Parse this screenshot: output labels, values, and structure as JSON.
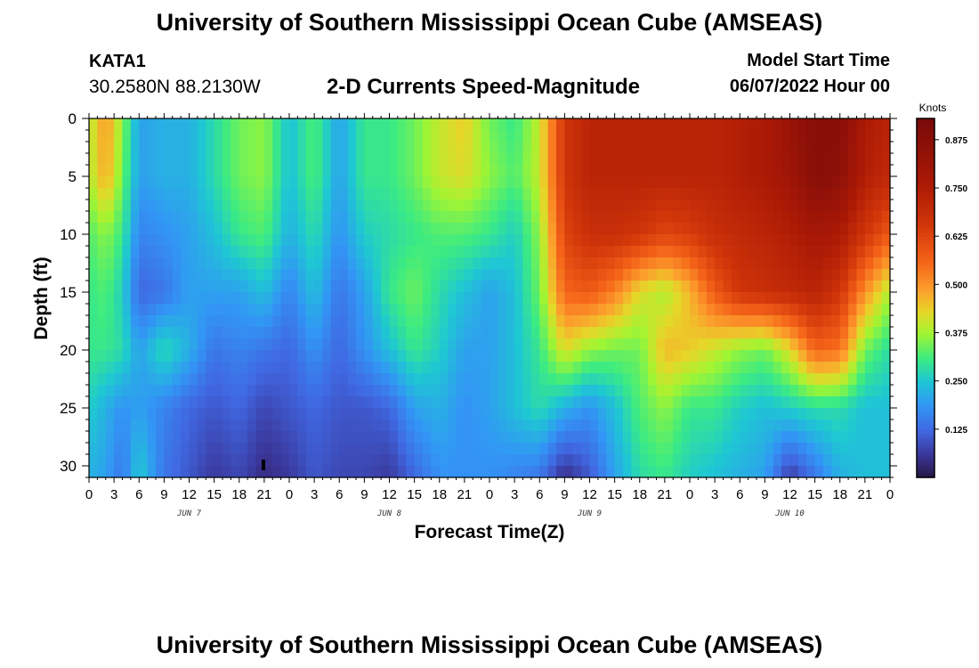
{
  "header": {
    "title": "University of Southern Mississippi Ocean Cube (AMSEAS)",
    "station": "KATA1",
    "coords": "30.2580N  88.2130W",
    "subtitle": "2-D Currents Speed-Magnitude",
    "model_start_label": "Model Start Time",
    "model_start_value": "06/07/2022 Hour 00"
  },
  "footer": {
    "title_repeat": "University of Southern Mississippi Ocean Cube (AMSEAS)"
  },
  "chart_data": {
    "type": "heatmap",
    "title": "2-D Currents Speed-Magnitude",
    "xlabel": "Forecast Time(Z)",
    "ylabel": "Depth (ft)",
    "x_hours_range": [
      0,
      96
    ],
    "xlim": [
      0,
      96
    ],
    "ylim": [
      31,
      0
    ],
    "x_tick_labels": [
      "0",
      "3",
      "6",
      "9",
      "12",
      "15",
      "18",
      "21",
      "0",
      "3",
      "6",
      "9",
      "12",
      "15",
      "18",
      "21",
      "0",
      "3",
      "6",
      "9",
      "12",
      "15",
      "18",
      "21",
      "0",
      "3",
      "6",
      "9",
      "12",
      "15",
      "18",
      "21",
      "0"
    ],
    "day_labels": [
      {
        "label": "JUN 7",
        "hour": 12
      },
      {
        "label": "JUN 8",
        "hour": 36
      },
      {
        "label": "JUN 9",
        "hour": 60
      },
      {
        "label": "JUN 10",
        "hour": 84
      }
    ],
    "y_ticks": [
      0,
      5,
      10,
      15,
      20,
      25,
      30
    ],
    "colorbar": {
      "label": "Knots",
      "min": 0,
      "max": 0.93,
      "ticks": [
        0.125,
        0.25,
        0.375,
        0.5,
        0.625,
        0.75,
        0.875
      ],
      "tick_labels": [
        "0.125",
        "0.250",
        "0.375",
        "0.500",
        "0.625",
        "0.750",
        "0.875"
      ]
    },
    "depths_ft": [
      0,
      5,
      10,
      15,
      20,
      25,
      31
    ],
    "times_hr": [
      0,
      2,
      4,
      6,
      9,
      12,
      15,
      18,
      21,
      24,
      27,
      30,
      33,
      36,
      39,
      42,
      45,
      48,
      51,
      54,
      57,
      60,
      63,
      66,
      69,
      72,
      75,
      78,
      81,
      84,
      87,
      90,
      93,
      96
    ],
    "values_knots": [
      [
        0.38,
        0.5,
        0.36,
        0.2,
        0.22,
        0.22,
        0.28,
        0.34,
        0.36,
        0.24,
        0.32,
        0.2,
        0.3,
        0.3,
        0.34,
        0.4,
        0.44,
        0.34,
        0.3,
        0.4,
        0.66,
        0.72,
        0.72,
        0.72,
        0.72,
        0.72,
        0.72,
        0.74,
        0.76,
        0.82,
        0.88,
        0.88,
        0.76,
        0.72
      ],
      [
        0.38,
        0.48,
        0.34,
        0.2,
        0.22,
        0.22,
        0.28,
        0.34,
        0.36,
        0.24,
        0.32,
        0.2,
        0.3,
        0.3,
        0.34,
        0.4,
        0.42,
        0.36,
        0.32,
        0.4,
        0.66,
        0.72,
        0.72,
        0.72,
        0.72,
        0.72,
        0.72,
        0.74,
        0.76,
        0.8,
        0.88,
        0.86,
        0.74,
        0.7
      ],
      [
        0.32,
        0.36,
        0.3,
        0.16,
        0.18,
        0.2,
        0.24,
        0.3,
        0.32,
        0.22,
        0.28,
        0.18,
        0.26,
        0.28,
        0.3,
        0.32,
        0.32,
        0.3,
        0.26,
        0.36,
        0.62,
        0.68,
        0.68,
        0.66,
        0.62,
        0.64,
        0.68,
        0.7,
        0.72,
        0.74,
        0.78,
        0.76,
        0.66,
        0.58
      ],
      [
        0.3,
        0.32,
        0.26,
        0.12,
        0.14,
        0.2,
        0.2,
        0.2,
        0.24,
        0.16,
        0.24,
        0.14,
        0.2,
        0.3,
        0.34,
        0.28,
        0.24,
        0.2,
        0.24,
        0.34,
        0.56,
        0.58,
        0.52,
        0.42,
        0.38,
        0.46,
        0.58,
        0.66,
        0.68,
        0.7,
        0.72,
        0.66,
        0.5,
        0.38
      ],
      [
        0.3,
        0.3,
        0.28,
        0.2,
        0.28,
        0.22,
        0.14,
        0.16,
        0.14,
        0.12,
        0.18,
        0.12,
        0.18,
        0.24,
        0.3,
        0.26,
        0.2,
        0.2,
        0.24,
        0.3,
        0.42,
        0.36,
        0.34,
        0.34,
        0.46,
        0.44,
        0.4,
        0.36,
        0.34,
        0.42,
        0.56,
        0.54,
        0.34,
        0.28
      ],
      [
        0.26,
        0.22,
        0.18,
        0.2,
        0.16,
        0.12,
        0.1,
        0.12,
        0.08,
        0.1,
        0.12,
        0.1,
        0.1,
        0.12,
        0.2,
        0.22,
        0.18,
        0.2,
        0.24,
        0.28,
        0.22,
        0.18,
        0.24,
        0.32,
        0.36,
        0.3,
        0.3,
        0.26,
        0.24,
        0.26,
        0.28,
        0.28,
        0.24,
        0.24
      ],
      [
        0.22,
        0.2,
        0.14,
        0.26,
        0.14,
        0.1,
        0.06,
        0.08,
        0.04,
        0.06,
        0.1,
        0.08,
        0.08,
        0.06,
        0.12,
        0.18,
        0.18,
        0.18,
        0.16,
        0.14,
        0.04,
        0.1,
        0.2,
        0.28,
        0.3,
        0.26,
        0.24,
        0.22,
        0.2,
        0.06,
        0.14,
        0.22,
        0.24,
        0.24
      ]
    ]
  }
}
